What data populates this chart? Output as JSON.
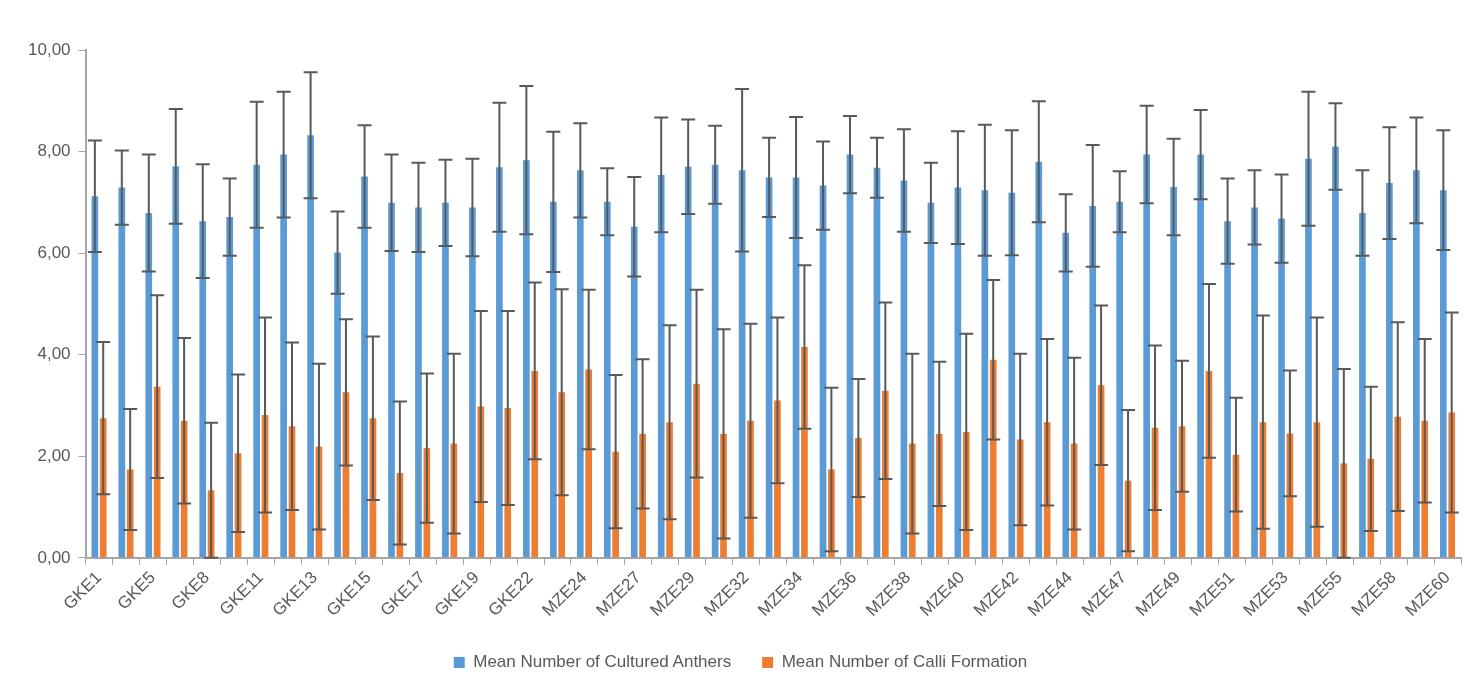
{
  "chart_data": {
    "type": "bar",
    "categories": [
      "GKE1",
      null,
      "GKE5",
      null,
      "GKE8",
      null,
      "GKE11",
      null,
      "GKE13",
      null,
      "GKE15",
      null,
      "GKE17",
      null,
      "GKE19",
      null,
      "GKE22",
      null,
      "MZE24",
      null,
      "MZE27",
      null,
      "MZE29",
      null,
      "MZE32",
      null,
      "MZE34",
      null,
      "MZE36",
      null,
      "MZE38",
      null,
      "MZE40",
      null,
      "MZE42",
      null,
      "MZE44",
      null,
      "MZE47",
      null,
      "MZE49",
      null,
      "MZE51",
      null,
      "MZE53",
      null,
      "MZE55",
      null,
      "MZE58",
      null,
      "MZE60"
    ],
    "series": [
      {
        "name": "Mean Number of Cultured Anthers",
        "color": "#5b9bd5",
        "values": [
          7.12,
          7.29,
          6.79,
          7.71,
          6.63,
          6.71,
          7.74,
          7.94,
          8.32,
          6.01,
          7.51,
          6.99,
          6.9,
          6.99,
          6.9,
          7.69,
          7.83,
          7.01,
          7.63,
          7.01,
          6.52,
          7.54,
          7.7,
          7.74,
          7.63,
          7.49,
          7.49,
          7.33,
          7.94,
          7.68,
          7.43,
          6.99,
          7.29,
          7.24,
          7.19,
          7.8,
          6.4,
          6.93,
          7.01,
          7.94,
          7.3,
          7.94,
          6.63,
          6.9,
          6.68,
          7.86,
          8.1,
          6.79,
          7.38,
          7.63,
          7.24
        ],
        "errors": [
          1.1,
          0.73,
          1.15,
          1.13,
          1.12,
          0.76,
          1.24,
          1.24,
          1.24,
          0.81,
          1.01,
          0.95,
          0.88,
          0.85,
          0.96,
          1.27,
          1.46,
          1.38,
          0.93,
          0.66,
          0.98,
          1.13,
          0.93,
          0.77,
          1.6,
          0.78,
          1.19,
          0.87,
          0.76,
          0.59,
          1.01,
          0.79,
          1.11,
          1.29,
          1.23,
          1.19,
          0.76,
          1.2,
          0.6,
          0.96,
          0.95,
          0.88,
          0.84,
          0.73,
          0.87,
          1.32,
          0.85,
          0.84,
          1.1,
          1.04,
          1.18
        ]
      },
      {
        "name": "Mean Number of Calli Formation",
        "color": "#ed7d31",
        "values": [
          2.75,
          1.74,
          3.37,
          2.7,
          1.33,
          2.06,
          2.81,
          2.59,
          2.19,
          3.26,
          2.75,
          1.67,
          2.16,
          2.25,
          2.98,
          2.95,
          3.68,
          3.26,
          3.71,
          2.09,
          2.44,
          2.67,
          3.43,
          2.44,
          2.7,
          3.1,
          4.15,
          1.74,
          2.36,
          3.29,
          2.25,
          2.44,
          2.48,
          3.9,
          2.33,
          2.67,
          2.25,
          3.4,
          1.52,
          2.56,
          2.59,
          3.68,
          2.03,
          2.67,
          2.45,
          2.67,
          1.86,
          1.95,
          2.78,
          2.7,
          2.86
        ],
        "errors": [
          1.5,
          1.19,
          1.8,
          1.63,
          1.33,
          1.55,
          1.92,
          1.65,
          1.63,
          1.44,
          1.61,
          1.41,
          1.47,
          1.77,
          1.88,
          1.91,
          1.74,
          2.03,
          1.57,
          1.51,
          1.47,
          1.91,
          1.85,
          2.06,
          1.91,
          1.63,
          1.61,
          1.61,
          1.16,
          1.74,
          1.77,
          1.42,
          1.93,
          1.57,
          1.69,
          1.64,
          1.69,
          1.57,
          1.39,
          1.62,
          1.29,
          1.71,
          1.12,
          2.1,
          1.24,
          2.06,
          1.86,
          1.42,
          1.86,
          1.61,
          1.97
        ]
      }
    ],
    "ylim": [
      0,
      10
    ],
    "yticks": [
      {
        "value": 0,
        "label": "0,00"
      },
      {
        "value": 2,
        "label": "2,00"
      },
      {
        "value": 4,
        "label": "4,00"
      },
      {
        "value": 6,
        "label": "6,00"
      },
      {
        "value": 8,
        "label": "8,00"
      },
      {
        "value": 10,
        "label": "10,00"
      }
    ],
    "legend": "bottom"
  }
}
